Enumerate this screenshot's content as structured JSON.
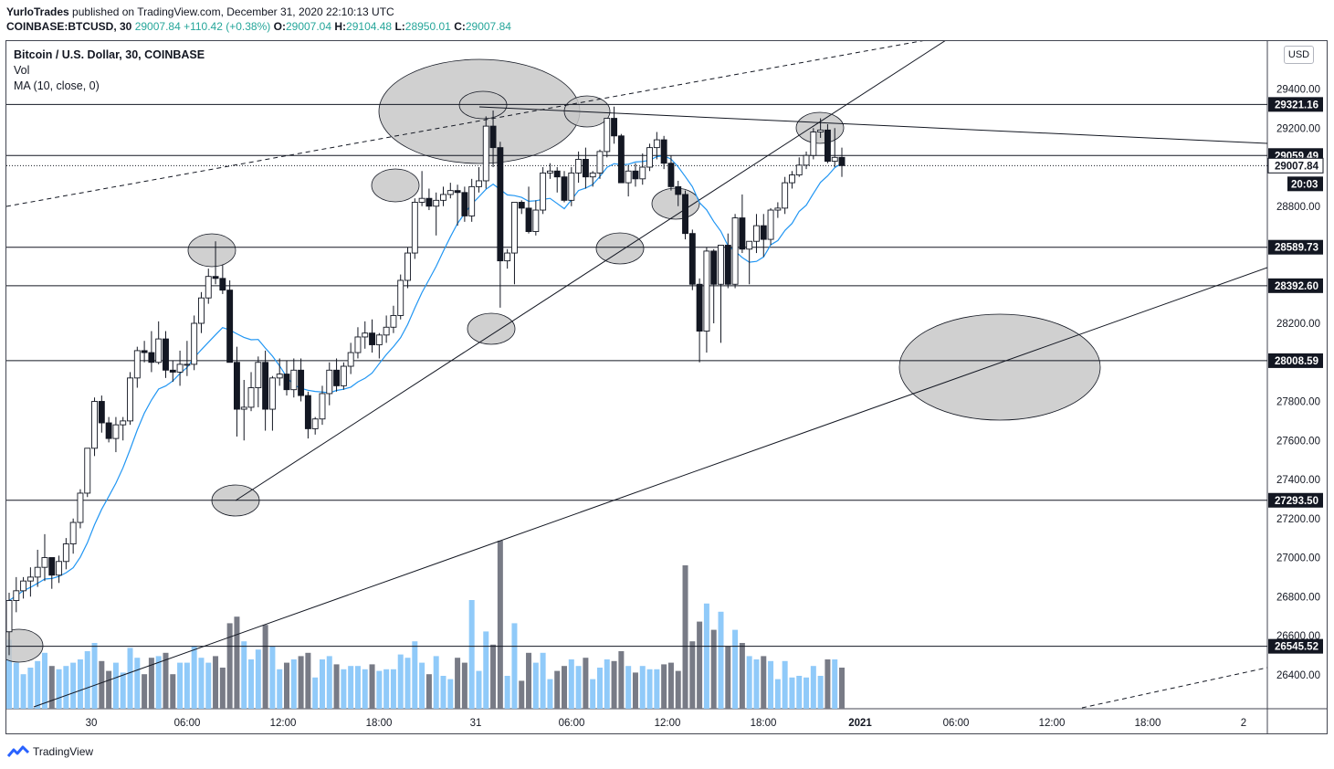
{
  "header": {
    "author": "YurloTrades",
    "published": "published on TradingView.com, December 31, 2020 22:10:13 UTC",
    "symbol": "COINBASE:BTCUSD, 30",
    "change": "29007.84 +110.42 (+0.38%)",
    "o_label": "O:",
    "o_value": "29007.04",
    "h_label": "H:",
    "h_value": "29104.48",
    "l_label": "L:",
    "l_value": "28950.01",
    "c_label": "C:",
    "c_value": "29007.84"
  },
  "legend": {
    "title": "Bitcoin / U.S. Dollar, 30, COINBASE",
    "vol": "Vol",
    "ma": "MA (10, close, 0)"
  },
  "currency_button": "USD",
  "footer": {
    "brand": "TradingView"
  },
  "colors": {
    "candle_up": "#ffffff",
    "candle_down": "#131722",
    "vol_up": "#90caf9",
    "vol_down": "#787b86",
    "ma": "#2196f3",
    "ellipse": "#c8c8c8"
  },
  "chart_data": {
    "type": "candlestick",
    "timeframe": "30",
    "price_axis_ticks": [
      26400,
      26600,
      26800,
      27000,
      27200,
      27400,
      27600,
      27800,
      28000,
      28200,
      28400,
      28600,
      28800,
      29000,
      29200,
      29400
    ],
    "price_axis_labels": [
      "26400.00",
      "26600.00",
      "26800.00",
      "27000.00",
      "27200.00",
      "27400.00",
      "27600.00",
      "27800.00",
      "28000.00",
      "28200.00",
      "28400.00",
      "28600.00",
      "28800.00",
      "29000.00",
      "29200.00",
      "29400.00"
    ],
    "price_range": [
      26320,
      29700
    ],
    "time_axis_labels": [
      "30",
      "06:00",
      "12:00",
      "18:00",
      "31",
      "06:00",
      "12:00",
      "18:00",
      "2021",
      "06:00",
      "12:00",
      "18:00",
      "2"
    ],
    "horizontal_levels": [
      29321.16,
      29059.49,
      28589.73,
      28392.6,
      28008.59,
      27293.5,
      26545.52
    ],
    "level_labels": [
      "29321.16",
      "29059.49",
      "28589.73",
      "28392.60",
      "28008.59",
      "27293.50",
      "26545.52"
    ],
    "last_price": 29007.84,
    "last_price_label": "29007.84",
    "countdown": "20:03",
    "candles": [
      [
        26620,
        26820,
        26500,
        26780
      ],
      [
        26780,
        26900,
        26720,
        26830
      ],
      [
        26830,
        26900,
        26790,
        26880
      ],
      [
        26880,
        26950,
        26800,
        26900
      ],
      [
        26900,
        27040,
        26850,
        26950
      ],
      [
        26950,
        27120,
        26880,
        27000
      ],
      [
        27000,
        27000,
        26840,
        26910
      ],
      [
        26910,
        27010,
        26870,
        26980
      ],
      [
        26980,
        27100,
        26940,
        27070
      ],
      [
        27070,
        27200,
        27020,
        27180
      ],
      [
        27180,
        27350,
        27150,
        27330
      ],
      [
        27330,
        27560,
        27310,
        27560
      ],
      [
        27560,
        27820,
        27520,
        27800
      ],
      [
        27800,
        27830,
        27640,
        27690
      ],
      [
        27690,
        27720,
        27590,
        27610
      ],
      [
        27610,
        27720,
        27540,
        27680
      ],
      [
        27680,
        27720,
        27600,
        27700
      ],
      [
        27700,
        27950,
        27680,
        27920
      ],
      [
        27920,
        28080,
        27870,
        28060
      ],
      [
        28060,
        28110,
        28000,
        28050
      ],
      [
        28050,
        28160,
        27950,
        28000
      ],
      [
        28000,
        28210,
        27990,
        28120
      ],
      [
        28120,
        28160,
        27920,
        27960
      ],
      [
        27960,
        28010,
        27900,
        27950
      ],
      [
        27950,
        28060,
        27880,
        27990
      ],
      [
        27990,
        28110,
        27930,
        27990
      ],
      [
        27990,
        28240,
        27960,
        28200
      ],
      [
        28200,
        28360,
        28150,
        28330
      ],
      [
        28330,
        28480,
        28300,
        28440
      ],
      [
        28440,
        28620,
        28400,
        28430
      ],
      [
        28430,
        28500,
        28350,
        28370
      ],
      [
        28370,
        28420,
        28000,
        28000
      ],
      [
        28000,
        28080,
        27620,
        27760
      ],
      [
        27760,
        27910,
        27600,
        27770
      ],
      [
        27770,
        27950,
        27750,
        27870
      ],
      [
        27870,
        28030,
        27770,
        28000
      ],
      [
        28000,
        28060,
        27650,
        27760
      ],
      [
        27760,
        27930,
        27650,
        27920
      ],
      [
        27920,
        28020,
        27880,
        27940
      ],
      [
        27940,
        28010,
        27830,
        27860
      ],
      [
        27860,
        28020,
        27820,
        27960
      ],
      [
        27960,
        28020,
        27800,
        27830
      ],
      [
        27830,
        27850,
        27610,
        27660
      ],
      [
        27660,
        27720,
        27630,
        27710
      ],
      [
        27710,
        27880,
        27680,
        27840
      ],
      [
        27840,
        28000,
        27780,
        27960
      ],
      [
        27960,
        28020,
        27850,
        27880
      ],
      [
        27880,
        28000,
        27860,
        27980
      ],
      [
        27980,
        28100,
        27940,
        28050
      ],
      [
        28050,
        28180,
        28020,
        28130
      ],
      [
        28130,
        28210,
        28070,
        28150
      ],
      [
        28150,
        28220,
        28050,
        28090
      ],
      [
        28090,
        28150,
        28020,
        28140
      ],
      [
        28140,
        28240,
        28100,
        28180
      ],
      [
        28180,
        28290,
        28150,
        28240
      ],
      [
        28240,
        28450,
        28220,
        28420
      ],
      [
        28420,
        28590,
        28380,
        28560
      ],
      [
        28560,
        28840,
        28530,
        28820
      ],
      [
        28820,
        28980,
        28800,
        28840
      ],
      [
        28840,
        28890,
        28780,
        28800
      ],
      [
        28800,
        28870,
        28650,
        28830
      ],
      [
        28830,
        28900,
        28800,
        28860
      ],
      [
        28860,
        28920,
        28840,
        28880
      ],
      [
        28880,
        28910,
        28700,
        28870
      ],
      [
        28870,
        28900,
        28720,
        28750
      ],
      [
        28750,
        28940,
        28720,
        28900
      ],
      [
        28900,
        29000,
        28870,
        28930
      ],
      [
        28930,
        29260,
        28890,
        29210
      ],
      [
        29210,
        29290,
        29000,
        29100
      ],
      [
        29100,
        29130,
        28280,
        28520
      ],
      [
        28520,
        28580,
        28480,
        28560
      ],
      [
        28560,
        28820,
        28400,
        28820
      ],
      [
        28820,
        28830,
        28760,
        28790
      ],
      [
        28790,
        28900,
        28660,
        28670
      ],
      [
        28670,
        28830,
        28650,
        28780
      ],
      [
        28780,
        29000,
        28760,
        28970
      ],
      [
        28970,
        29020,
        28940,
        28980
      ],
      [
        28980,
        29000,
        28870,
        28950
      ],
      [
        28950,
        28980,
        28820,
        28830
      ],
      [
        28830,
        29000,
        28800,
        28970
      ],
      [
        28970,
        29080,
        28920,
        29040
      ],
      [
        29040,
        29100,
        28890,
        28950
      ],
      [
        28950,
        28980,
        28900,
        28970
      ],
      [
        28970,
        29090,
        28940,
        29080
      ],
      [
        29080,
        29250,
        29050,
        29250
      ],
      [
        29250,
        29310,
        29120,
        29160
      ],
      [
        29160,
        29170,
        28920,
        28920
      ],
      [
        28920,
        29010,
        28850,
        28980
      ],
      [
        28980,
        29020,
        28900,
        28940
      ],
      [
        28940,
        29070,
        28910,
        29000
      ],
      [
        29000,
        29120,
        28980,
        29100
      ],
      [
        29100,
        29180,
        29040,
        29140
      ],
      [
        29140,
        29160,
        28990,
        29020
      ],
      [
        29020,
        29060,
        28880,
        28900
      ],
      [
        28900,
        28930,
        28800,
        28860
      ],
      [
        28860,
        28880,
        28630,
        28660
      ],
      [
        28660,
        28680,
        28370,
        28400
      ],
      [
        28400,
        28430,
        28000,
        28160
      ],
      [
        28160,
        28590,
        28050,
        28570
      ],
      [
        28570,
        28580,
        28200,
        28400
      ],
      [
        28400,
        28590,
        28100,
        28600
      ],
      [
        28600,
        28660,
        28380,
        28400
      ],
      [
        28400,
        28760,
        28380,
        28740
      ],
      [
        28740,
        28860,
        28560,
        28580
      ],
      [
        28580,
        28620,
        28400,
        28620
      ],
      [
        28620,
        28760,
        28560,
        28700
      ],
      [
        28700,
        28760,
        28540,
        28630
      ],
      [
        28630,
        28790,
        28600,
        28780
      ],
      [
        28780,
        28820,
        28740,
        28790
      ],
      [
        28790,
        28950,
        28760,
        28920
      ],
      [
        28920,
        28980,
        28890,
        28960
      ],
      [
        28960,
        29050,
        28950,
        29010
      ],
      [
        29010,
        29080,
        28990,
        29060
      ],
      [
        29060,
        29200,
        29040,
        29180
      ],
      [
        29180,
        29250,
        29150,
        29190
      ],
      [
        29190,
        29220,
        29020,
        29030
      ],
      [
        29030,
        29200,
        29000,
        29050
      ],
      [
        29050,
        29100,
        28950,
        29007.84
      ]
    ],
    "volume_panel": "Vol",
    "ma_period": 10
  }
}
